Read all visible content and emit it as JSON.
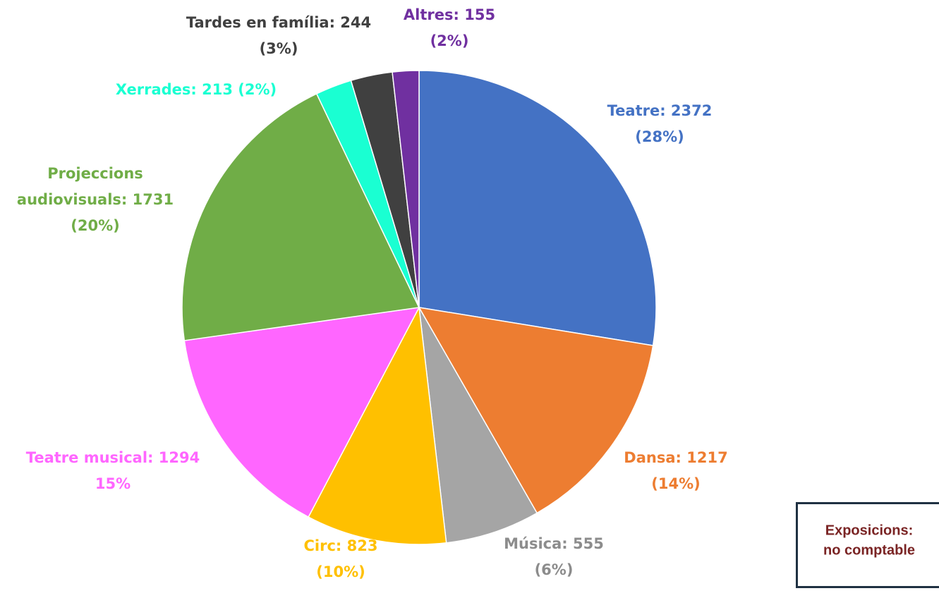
{
  "chart_data": {
    "type": "pie",
    "values": [
      2372,
      1217,
      555,
      823,
      1294,
      1731,
      213,
      244,
      155
    ],
    "value_labels": [
      [
        "Teatre: 2372",
        "(28%)"
      ],
      [
        "Dansa: 1217",
        "(14%)"
      ],
      [
        "Música: 555",
        "(6%)"
      ],
      [
        "Circ: 823",
        "(10%)"
      ],
      [
        "Teatre musical: 1294",
        "15%"
      ],
      [
        "Projeccions",
        "audiovisuals: 1731",
        "(20%)"
      ],
      [
        "Xerrades: 213 (2%)"
      ],
      [
        "Tardes en família: 244",
        "(3%)"
      ],
      [
        "Altres: 155",
        "(2%)"
      ]
    ],
    "colors": [
      "#4472c4",
      "#ed7d31",
      "#a5a5a5",
      "#ffc000",
      "#ff66ff",
      "#70ad47",
      "#1affd2",
      "#404040",
      "#7030a0"
    ],
    "annotation": [
      "Exposicions:",
      "no comptable"
    ]
  }
}
